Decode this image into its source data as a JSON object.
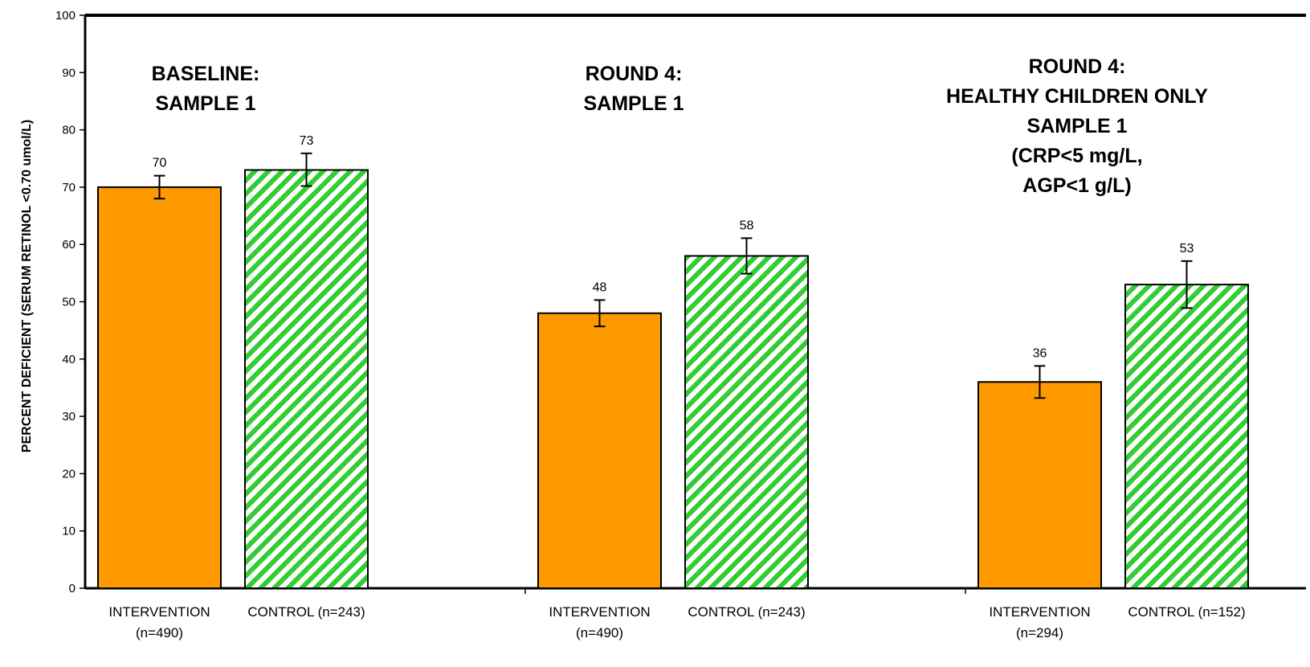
{
  "chart_data": {
    "type": "bar",
    "title": "",
    "ylabel": "PERCENT DEFICIENT (SERUM RETINOL <0.70 umol/L)",
    "ylim": [
      0,
      100
    ],
    "yticks": [
      0,
      10,
      20,
      30,
      40,
      50,
      60,
      70,
      80,
      90,
      100
    ],
    "grid": false,
    "legend": "none",
    "colors": {
      "intervention": "#FF9900",
      "control_stripe": "#33CC33",
      "control_bg": "#FFFFFF",
      "outline": "#000000"
    },
    "groups": [
      {
        "title_lines": [
          "BASELINE:",
          "SAMPLE 1"
        ],
        "bars": [
          {
            "series": "intervention",
            "label_lines": [
              "INTERVENTION",
              "(n=490)"
            ],
            "value": 70,
            "value_label": "70",
            "err_low": 68,
            "err_high": 72
          },
          {
            "series": "control",
            "label_lines": [
              "CONTROL (n=243)"
            ],
            "value": 73,
            "value_label": "73",
            "err_low": 70.2,
            "err_high": 75.9
          }
        ]
      },
      {
        "title_lines": [
          "ROUND 4:",
          "SAMPLE 1"
        ],
        "bars": [
          {
            "series": "intervention",
            "label_lines": [
              "INTERVENTION",
              "(n=490)"
            ],
            "value": 48,
            "value_label": "48",
            "err_low": 45.7,
            "err_high": 50.3
          },
          {
            "series": "control",
            "label_lines": [
              "CONTROL (n=243)"
            ],
            "value": 58,
            "value_label": "58",
            "err_low": 54.9,
            "err_high": 61.1
          }
        ]
      },
      {
        "title_lines": [
          "ROUND 4:",
          "HEALTHY CHILDREN ONLY",
          "SAMPLE 1",
          "(CRP<5 mg/L,",
          "AGP<1 g/L)"
        ],
        "bars": [
          {
            "series": "intervention",
            "label_lines": [
              "INTERVENTION",
              "(n=294)"
            ],
            "value": 36,
            "value_label": "36",
            "err_low": 33.2,
            "err_high": 38.8
          },
          {
            "series": "control",
            "label_lines": [
              "CONTROL (n=152)"
            ],
            "value": 53,
            "value_label": "53",
            "err_low": 48.9,
            "err_high": 57.1
          }
        ]
      }
    ]
  }
}
